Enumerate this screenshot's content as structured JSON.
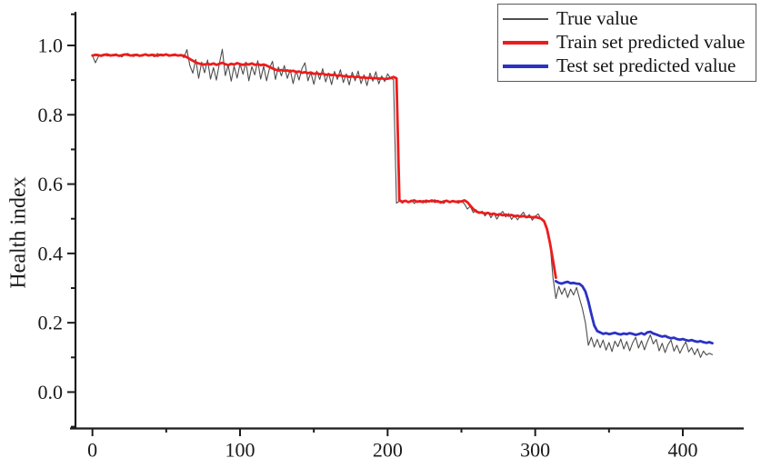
{
  "chart_data": {
    "type": "line",
    "title": "",
    "xlabel": "",
    "ylabel": "Health index",
    "xlim": [
      -11.5,
      442.5
    ],
    "ylim": [
      -0.105,
      1.097
    ],
    "grid": false,
    "axis_color": "#1c1c1c",
    "tick_label_color": "#1a1a1a",
    "x_ticks": {
      "major": [
        0,
        100,
        200,
        300,
        400
      ],
      "labels": [
        "0",
        "100",
        "200",
        "300",
        "400"
      ],
      "minor": [
        50,
        150,
        250,
        350
      ]
    },
    "y_ticks": {
      "major": [
        0.0,
        0.2,
        0.4,
        0.6,
        0.8,
        1.0
      ],
      "labels": [
        "0.0",
        "0.2",
        "0.4",
        "0.6",
        "0.8",
        "1.0"
      ],
      "minor": [
        -0.1,
        0.1,
        0.3,
        0.5,
        0.7,
        0.9,
        1.09
      ]
    },
    "legend": {
      "position": "top-right",
      "border": true,
      "border_color": "#595959"
    },
    "series": [
      {
        "name": "True value",
        "color": "#4d4d4d",
        "stroke_width": 1.1,
        "legend_line_height": 2,
        "x0": 0,
        "dx": 2,
        "values": [
          0.971,
          0.95,
          0.968,
          0.973,
          0.975,
          0.969,
          0.974,
          0.97,
          0.976,
          0.971,
          0.967,
          0.974,
          0.977,
          0.971,
          0.968,
          0.975,
          0.972,
          0.969,
          0.976,
          0.971,
          0.973,
          0.967,
          0.977,
          0.972,
          0.969,
          0.975,
          0.968,
          0.973,
          0.976,
          0.97,
          0.972,
          0.965,
          0.988,
          0.942,
          0.92,
          0.96,
          0.905,
          0.952,
          0.921,
          0.958,
          0.903,
          0.936,
          0.9,
          0.948,
          0.989,
          0.913,
          0.943,
          0.897,
          0.94,
          0.906,
          0.947,
          0.917,
          0.952,
          0.898,
          0.939,
          0.915,
          0.956,
          0.903,
          0.94,
          0.898,
          0.935,
          0.954,
          0.902,
          0.938,
          0.912,
          0.942,
          0.905,
          0.93,
          0.89,
          0.927,
          0.9,
          0.934,
          0.95,
          0.898,
          0.922,
          0.888,
          0.926,
          0.902,
          0.933,
          0.895,
          0.92,
          0.887,
          0.925,
          0.902,
          0.93,
          0.893,
          0.918,
          0.886,
          0.923,
          0.898,
          0.926,
          0.89,
          0.915,
          0.884,
          0.92,
          0.897,
          0.924,
          0.889,
          0.912,
          0.896,
          0.918,
          0.905,
          0.902,
          0.545,
          0.551,
          0.545,
          0.553,
          0.548,
          0.554,
          0.544,
          0.551,
          0.547,
          0.553,
          0.546,
          0.552,
          0.548,
          0.555,
          0.547,
          0.551,
          0.544,
          0.552,
          0.547,
          0.553,
          0.548,
          0.545,
          0.551,
          0.543,
          0.528,
          0.536,
          0.518,
          0.526,
          0.515,
          0.522,
          0.508,
          0.519,
          0.503,
          0.516,
          0.499,
          0.513,
          0.521,
          0.505,
          0.515,
          0.498,
          0.511,
          0.497,
          0.509,
          0.519,
          0.502,
          0.512,
          0.496,
          0.507,
          0.514,
          0.499,
          0.49,
          0.466,
          0.43,
          0.33,
          0.27,
          0.305,
          0.282,
          0.3,
          0.273,
          0.297,
          0.28,
          0.302,
          0.27,
          0.24,
          0.2,
          0.135,
          0.158,
          0.13,
          0.152,
          0.128,
          0.15,
          0.121,
          0.143,
          0.117,
          0.147,
          0.131,
          0.153,
          0.124,
          0.146,
          0.119,
          0.142,
          0.158,
          0.127,
          0.148,
          0.122,
          0.145,
          0.165,
          0.139,
          0.152,
          0.119,
          0.141,
          0.114,
          0.137,
          0.15,
          0.118,
          0.135,
          0.112,
          0.13,
          0.145,
          0.116,
          0.128,
          0.108,
          0.125,
          0.1,
          0.118,
          0.107,
          0.112,
          0.108
        ]
      },
      {
        "name": "Train set predicted value",
        "color": "#ed1c1c",
        "stroke_width": 2.8,
        "legend_line_height": 3.2,
        "x0": 0,
        "dx": 2,
        "values": [
          0.971,
          0.973,
          0.972,
          0.97,
          0.973,
          0.974,
          0.971,
          0.972,
          0.973,
          0.97,
          0.972,
          0.974,
          0.973,
          0.971,
          0.972,
          0.973,
          0.97,
          0.972,
          0.974,
          0.971,
          0.973,
          0.972,
          0.97,
          0.973,
          0.972,
          0.974,
          0.971,
          0.972,
          0.973,
          0.971,
          0.972,
          0.97,
          0.966,
          0.961,
          0.956,
          0.951,
          0.948,
          0.946,
          0.945,
          0.947,
          0.945,
          0.948,
          0.944,
          0.947,
          0.95,
          0.946,
          0.943,
          0.947,
          0.945,
          0.949,
          0.946,
          0.944,
          0.947,
          0.945,
          0.948,
          0.944,
          0.946,
          0.943,
          0.945,
          0.942,
          0.938,
          0.934,
          0.93,
          0.928,
          0.929,
          0.927,
          0.928,
          0.925,
          0.927,
          0.923,
          0.925,
          0.921,
          0.923,
          0.92,
          0.922,
          0.918,
          0.92,
          0.917,
          0.919,
          0.915,
          0.917,
          0.914,
          0.916,
          0.912,
          0.914,
          0.911,
          0.912,
          0.909,
          0.911,
          0.908,
          0.91,
          0.907,
          0.908,
          0.906,
          0.907,
          0.905,
          0.906,
          0.904,
          0.905,
          0.903,
          0.904,
          0.906,
          0.909,
          0.905,
          0.553,
          0.549,
          0.552,
          0.548,
          0.551,
          0.553,
          0.549,
          0.551,
          0.548,
          0.552,
          0.55,
          0.553,
          0.549,
          0.551,
          0.547,
          0.55,
          0.552,
          0.548,
          0.551,
          0.549,
          0.55,
          0.55,
          0.553,
          0.548,
          0.538,
          0.528,
          0.521,
          0.518,
          0.518,
          0.515,
          0.517,
          0.513,
          0.515,
          0.511,
          0.513,
          0.51,
          0.512,
          0.509,
          0.511,
          0.507,
          0.509,
          0.506,
          0.508,
          0.505,
          0.506,
          0.504,
          0.505,
          0.503,
          0.5,
          0.493,
          0.47,
          0.43,
          0.38,
          0.33
        ]
      },
      {
        "name": "Test set predicted value",
        "color": "#2b32c4",
        "stroke_width": 2.8,
        "legend_line_height": 3.2,
        "x0": 314,
        "dx": 2,
        "values": [
          0.32,
          0.315,
          0.313,
          0.316,
          0.318,
          0.314,
          0.315,
          0.313,
          0.312,
          0.305,
          0.29,
          0.262,
          0.225,
          0.192,
          0.176,
          0.172,
          0.168,
          0.17,
          0.167,
          0.169,
          0.171,
          0.168,
          0.166,
          0.169,
          0.167,
          0.17,
          0.168,
          0.165,
          0.167,
          0.17,
          0.166,
          0.172,
          0.174,
          0.169,
          0.166,
          0.163,
          0.16,
          0.162,
          0.158,
          0.155,
          0.157,
          0.153,
          0.151,
          0.153,
          0.15,
          0.148,
          0.15,
          0.147,
          0.145,
          0.147,
          0.144,
          0.142,
          0.144,
          0.141
        ]
      }
    ]
  }
}
